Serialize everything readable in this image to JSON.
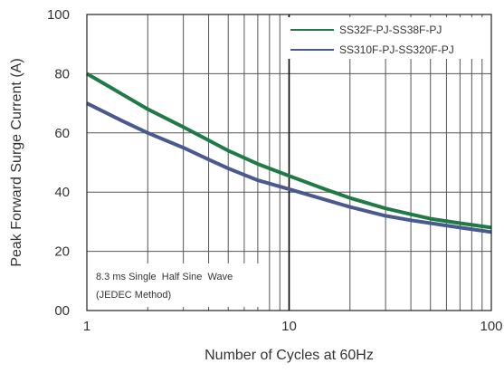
{
  "chart_data": {
    "type": "line",
    "title": "",
    "xlabel": "Number of Cycles at 60Hz",
    "ylabel": "Peak Forward Surge Current (A)",
    "xscale": "log",
    "xlim": [
      1,
      100
    ],
    "ylim": [
      0,
      100
    ],
    "x_ticks": [
      1,
      10,
      100
    ],
    "x_tick_labels": [
      "1",
      "10",
      "100"
    ],
    "y_ticks": [
      0,
      20,
      40,
      60,
      80,
      100
    ],
    "y_tick_labels": [
      "00",
      "20",
      "40",
      "60",
      "80",
      "100"
    ],
    "grid": true,
    "legend_position": "top-right",
    "annotation": [
      "8.3 ms Single  Half Sine  Wave",
      "(JEDEC Method)"
    ],
    "series": [
      {
        "name": "SS32F-PJ-SS38F-PJ",
        "color": "#1f7a45",
        "x": [
          1,
          1.5,
          2,
          3,
          4,
          5,
          7,
          10,
          15,
          20,
          30,
          40,
          50,
          70,
          100
        ],
        "values": [
          80,
          73,
          68,
          62,
          57.5,
          54,
          49.5,
          45.5,
          41,
          38,
          34.5,
          32.5,
          31,
          29.5,
          28
        ]
      },
      {
        "name": "SS310F-PJ-SS320F-PJ",
        "color": "#4a5a8e",
        "x": [
          1,
          1.5,
          2,
          3,
          4,
          5,
          7,
          10,
          15,
          20,
          30,
          40,
          50,
          70,
          100
        ],
        "values": [
          70,
          64,
          60,
          55,
          51,
          48,
          44,
          41,
          37.5,
          35,
          32,
          30.5,
          29.5,
          28,
          26.5
        ]
      }
    ]
  }
}
